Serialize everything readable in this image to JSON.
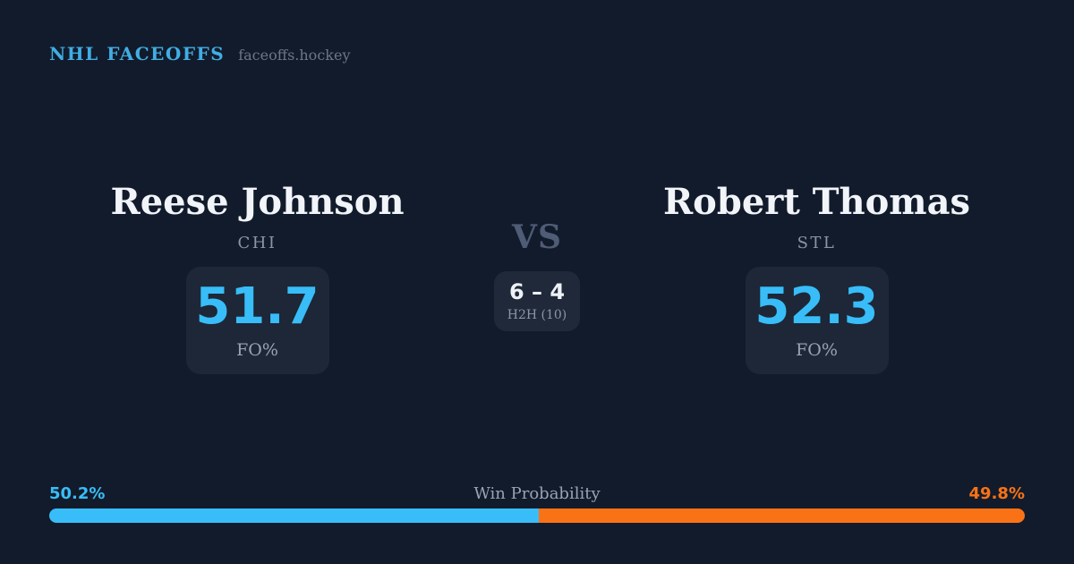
{
  "header": {
    "title": "NHL FACEOFFS",
    "subtitle": "faceoffs.hockey"
  },
  "matchup": {
    "vs_label": "VS",
    "h2h": {
      "score": "6 – 4",
      "label": "H2H (10)"
    },
    "players": [
      {
        "name": "Reese Johnson",
        "team": "CHI",
        "stat_value": "51.7",
        "stat_label": "FO%"
      },
      {
        "name": "Robert Thomas",
        "team": "STL",
        "stat_value": "52.3",
        "stat_label": "FO%"
      }
    ]
  },
  "win_probability": {
    "title": "Win Probability",
    "left_pct_label": "50.2%",
    "right_pct_label": "49.8%",
    "left_value": 50.2,
    "right_value": 49.8
  },
  "colors": {
    "background": "#121b2b",
    "card_background": "#1d2737",
    "accent_blue": "#38bdf8",
    "header_blue": "#41ade4",
    "accent_orange": "#f97316"
  }
}
